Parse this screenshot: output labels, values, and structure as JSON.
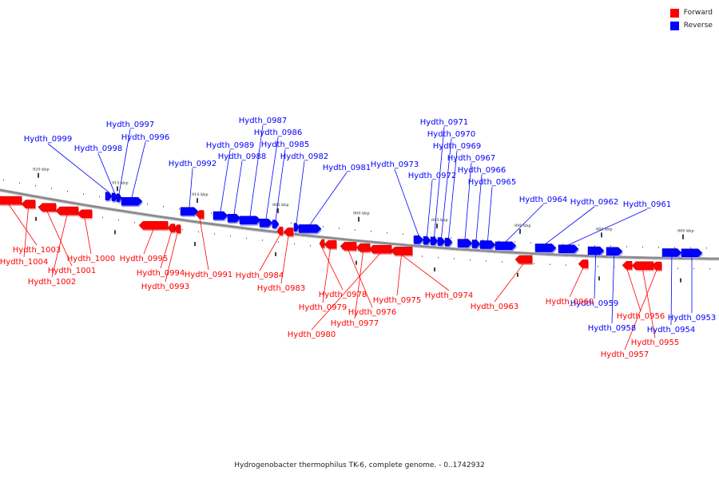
{
  "legend": [
    {
      "label": "Forward",
      "color": "#ff0000"
    },
    {
      "label": "Reverse",
      "color": "#0000ff"
    }
  ],
  "caption": "Hydrogenobacter thermophilus TK-6, complete genome. - 0..1742932",
  "colors": {
    "forward": "#ff0000",
    "reverse": "#0000ff",
    "backbone": "#8c8c8c"
  },
  "scale_ticks": [
    "920 kbp",
    "915 kbp",
    "910 kbp",
    "905 kbp",
    "900 kbp",
    "895 kbp",
    "890 kbp",
    "885 kbp",
    "880 kbp"
  ],
  "genes": [
    {
      "id": "Hydth_0999",
      "strand": "Reverse"
    },
    {
      "id": "Hydth_0998",
      "strand": "Reverse"
    },
    {
      "id": "Hydth_0997",
      "strand": "Reverse"
    },
    {
      "id": "Hydth_0996",
      "strand": "Reverse"
    },
    {
      "id": "Hydth_0992",
      "strand": "Reverse"
    },
    {
      "id": "Hydth_0989",
      "strand": "Reverse"
    },
    {
      "id": "Hydth_0988",
      "strand": "Reverse"
    },
    {
      "id": "Hydth_0987",
      "strand": "Reverse"
    },
    {
      "id": "Hydth_0986",
      "strand": "Reverse"
    },
    {
      "id": "Hydth_0985",
      "strand": "Reverse"
    },
    {
      "id": "Hydth_0982",
      "strand": "Reverse"
    },
    {
      "id": "Hydth_0981",
      "strand": "Reverse"
    },
    {
      "id": "Hydth_0973",
      "strand": "Reverse"
    },
    {
      "id": "Hydth_0972",
      "strand": "Reverse"
    },
    {
      "id": "Hydth_0971",
      "strand": "Reverse"
    },
    {
      "id": "Hydth_0970",
      "strand": "Reverse"
    },
    {
      "id": "Hydth_0969",
      "strand": "Reverse"
    },
    {
      "id": "Hydth_0967",
      "strand": "Reverse"
    },
    {
      "id": "Hydth_0966",
      "strand": "Reverse"
    },
    {
      "id": "Hydth_0965",
      "strand": "Reverse"
    },
    {
      "id": "Hydth_0964",
      "strand": "Reverse"
    },
    {
      "id": "Hydth_0962",
      "strand": "Reverse"
    },
    {
      "id": "Hydth_0961",
      "strand": "Reverse"
    },
    {
      "id": "Hydth_0959",
      "strand": "Reverse"
    },
    {
      "id": "Hydth_0958",
      "strand": "Reverse"
    },
    {
      "id": "Hydth_0954",
      "strand": "Reverse"
    },
    {
      "id": "Hydth_0953",
      "strand": "Reverse"
    },
    {
      "id": "Hydth_1003",
      "strand": "Forward"
    },
    {
      "id": "Hydth_1004",
      "strand": "Forward"
    },
    {
      "id": "Hydth_1001",
      "strand": "Forward"
    },
    {
      "id": "Hydth_1002",
      "strand": "Forward"
    },
    {
      "id": "Hydth_1000",
      "strand": "Forward"
    },
    {
      "id": "Hydth_0995",
      "strand": "Forward"
    },
    {
      "id": "Hydth_0994",
      "strand": "Forward"
    },
    {
      "id": "Hydth_0993",
      "strand": "Forward"
    },
    {
      "id": "Hydth_0991",
      "strand": "Forward"
    },
    {
      "id": "Hydth_0984",
      "strand": "Forward"
    },
    {
      "id": "Hydth_0983",
      "strand": "Forward"
    },
    {
      "id": "Hydth_0978",
      "strand": "Forward"
    },
    {
      "id": "Hydth_0979",
      "strand": "Forward"
    },
    {
      "id": "Hydth_0976",
      "strand": "Forward"
    },
    {
      "id": "Hydth_0977",
      "strand": "Forward"
    },
    {
      "id": "Hydth_0980",
      "strand": "Forward"
    },
    {
      "id": "Hydth_0975",
      "strand": "Forward"
    },
    {
      "id": "Hydth_0974",
      "strand": "Forward"
    },
    {
      "id": "Hydth_0963",
      "strand": "Forward"
    },
    {
      "id": "Hydth_0960",
      "strand": "Forward"
    },
    {
      "id": "Hydth_0956",
      "strand": "Forward"
    },
    {
      "id": "Hydth_0955",
      "strand": "Forward"
    },
    {
      "id": "Hydth_0957",
      "strand": "Forward"
    }
  ]
}
